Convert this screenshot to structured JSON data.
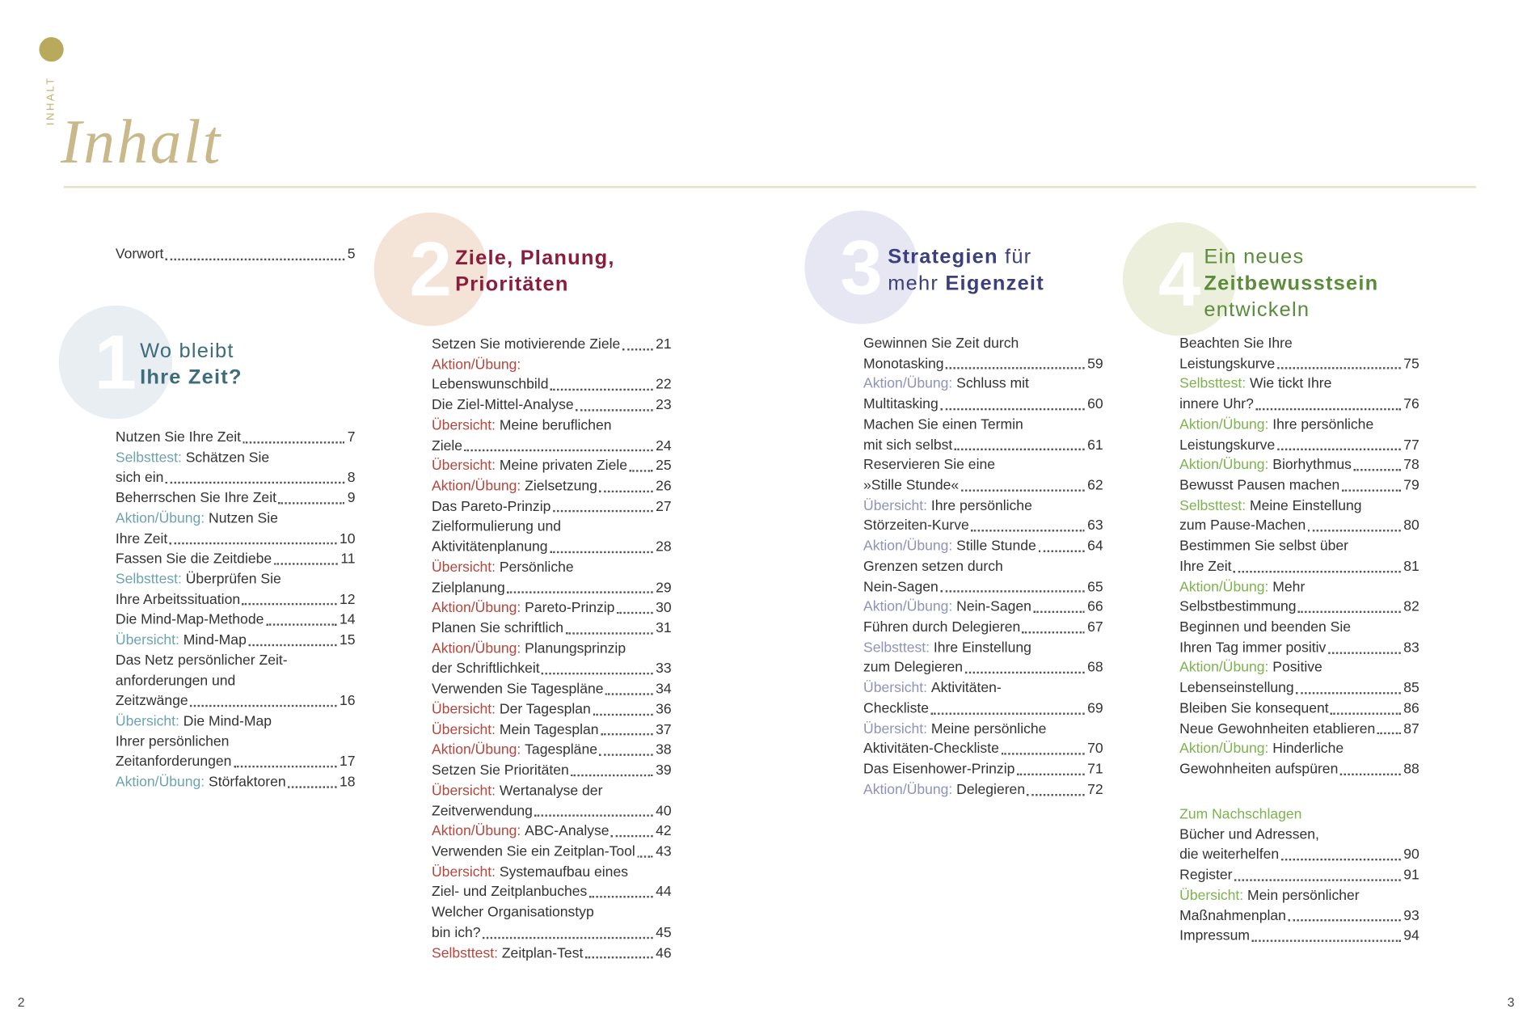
{
  "header": {
    "side_label": "INHALT",
    "title": "Inhalt"
  },
  "page_numbers": {
    "left": 2,
    "right": 3
  },
  "columns": [
    {
      "preface": [
        {
          "text": "Vorwort",
          "page": 5
        }
      ],
      "section": {
        "number": 1,
        "title": [
          [
            {
              "text": "Wo bleibt"
            }
          ],
          [
            {
              "text": "Ihre Zeit?",
              "bold": true
            }
          ]
        ]
      },
      "rows": [
        {
          "text": "Nutzen Sie Ihre Zeit",
          "page": 7
        },
        {
          "kind": "Selbsttest:",
          "text": "Schätzen Sie"
        },
        {
          "text": "sich ein",
          "page": 8
        },
        {
          "text": "Beherrschen Sie Ihre Zeit",
          "page": 9
        },
        {
          "kind": "Aktion/Übung:",
          "text": "Nutzen Sie"
        },
        {
          "text": "Ihre Zeit",
          "page": 10
        },
        {
          "text": "Fassen Sie die Zeitdiebe",
          "page": 11
        },
        {
          "kind": "Selbsttest:",
          "text": "Überprüfen Sie"
        },
        {
          "text": "Ihre Arbeitssituation",
          "page": 12
        },
        {
          "text": "Die Mind-Map-Methode",
          "page": 14
        },
        {
          "kind": "Übersicht:",
          "text": "Mind-Map",
          "page": 15
        },
        {
          "text": "Das Netz persönlicher Zeit-"
        },
        {
          "text": "anforderungen und"
        },
        {
          "text": "Zeitzwänge",
          "page": 16
        },
        {
          "kind": "Übersicht:",
          "text": "Die Mind-Map"
        },
        {
          "text": "Ihrer persönlichen"
        },
        {
          "text": "Zeitanforderungen",
          "page": 17
        },
        {
          "kind": "Aktion/Übung:",
          "text": "Störfaktoren",
          "page": 18
        }
      ]
    },
    {
      "section": {
        "number": 2,
        "title": [
          [
            {
              "text": "Ziele, Planung,",
              "bold": true
            }
          ],
          [
            {
              "text": "Prioritäten",
              "bold": true
            }
          ]
        ]
      },
      "rows": [
        {
          "text": "Setzen Sie motivierende Ziele",
          "page": 21
        },
        {
          "kind": "Aktion/Übung:"
        },
        {
          "text": "Lebenswunschbild",
          "page": 22
        },
        {
          "text": "Die Ziel-Mittel-Analyse",
          "page": 23
        },
        {
          "kind": "Übersicht:",
          "text": "Meine beruflichen"
        },
        {
          "text": "Ziele",
          "page": 24
        },
        {
          "kind": "Übersicht:",
          "text": "Meine privaten Ziele",
          "page": 25
        },
        {
          "kind": "Aktion/Übung:",
          "text": "Zielsetzung",
          "page": 26
        },
        {
          "text": "Das Pareto-Prinzip",
          "page": 27
        },
        {
          "text": "Zielformulierung und"
        },
        {
          "text": "Aktivitätenplanung",
          "page": 28
        },
        {
          "kind": "Übersicht:",
          "text": "Persönliche"
        },
        {
          "text": "Zielplanung",
          "page": 29
        },
        {
          "kind": "Aktion/Übung:",
          "text": "Pareto-Prinzip",
          "page": 30
        },
        {
          "text": "Planen Sie schriftlich",
          "page": 31
        },
        {
          "kind": "Aktion/Übung:",
          "text": "Planungsprinzip"
        },
        {
          "text": "der Schriftlichkeit",
          "page": 33
        },
        {
          "text": "Verwenden Sie Tagespläne",
          "page": 34
        },
        {
          "kind": "Übersicht:",
          "text": "Der Tagesplan",
          "page": 36
        },
        {
          "kind": "Übersicht:",
          "text": "Mein Tagesplan",
          "page": 37
        },
        {
          "kind": "Aktion/Übung:",
          "text": "Tagespläne",
          "page": 38
        },
        {
          "text": "Setzen Sie Prioritäten",
          "page": 39
        },
        {
          "kind": "Übersicht:",
          "text": "Wertanalyse der"
        },
        {
          "text": "Zeitverwendung",
          "page": 40
        },
        {
          "kind": "Aktion/Übung:",
          "text": "ABC-Analyse",
          "page": 42
        },
        {
          "text": "Verwenden Sie ein Zeitplan-Tool",
          "page": 43
        },
        {
          "kind": "Übersicht:",
          "text": "Systemaufbau eines"
        },
        {
          "text": "Ziel- und Zeitplanbuches",
          "page": 44
        },
        {
          "text": "Welcher Organisationstyp"
        },
        {
          "text": "bin ich?",
          "page": 45
        },
        {
          "kind": "Selbsttest:",
          "text": "Zeitplan-Test",
          "page": 46
        }
      ]
    },
    {
      "section": {
        "number": 3,
        "title": [
          [
            {
              "text": "Strategien",
              "bold": true
            },
            {
              "text": "für"
            }
          ],
          [
            {
              "text": "mehr"
            },
            {
              "text": "Eigenzeit",
              "bold": true
            }
          ]
        ]
      },
      "rows": [
        {
          "text": "Gewinnen Sie Zeit durch"
        },
        {
          "text": "Monotasking",
          "page": 59
        },
        {
          "kind": "Aktion/Übung:",
          "text": "Schluss mit"
        },
        {
          "text": "Multitasking",
          "page": 60
        },
        {
          "text": "Machen Sie einen Termin"
        },
        {
          "text": "mit sich selbst",
          "page": 61
        },
        {
          "text": "Reservieren Sie eine"
        },
        {
          "text": "»Stille Stunde«",
          "page": 62
        },
        {
          "kind": "Übersicht:",
          "text": "Ihre persönliche"
        },
        {
          "text": "Störzeiten-Kurve",
          "page": 63
        },
        {
          "kind": "Aktion/Übung:",
          "text": "Stille Stunde",
          "page": 64
        },
        {
          "text": "Grenzen setzen durch"
        },
        {
          "text": "Nein-Sagen",
          "page": 65
        },
        {
          "kind": "Aktion/Übung:",
          "text": "Nein-Sagen",
          "page": 66
        },
        {
          "text": "Führen durch Delegieren",
          "page": 67
        },
        {
          "kind": "Selbsttest:",
          "text": "Ihre Einstellung"
        },
        {
          "text": "zum Delegieren",
          "page": 68
        },
        {
          "kind": "Übersicht:",
          "text": "Aktivitäten-"
        },
        {
          "text": "Checkliste",
          "page": 69
        },
        {
          "kind": "Übersicht:",
          "text": "Meine persönliche"
        },
        {
          "text": "Aktivitäten-Checkliste",
          "page": 70
        },
        {
          "text": "Das Eisenhower-Prinzip",
          "page": 71
        },
        {
          "kind": "Aktion/Übung:",
          "text": "Delegieren",
          "page": 72
        }
      ]
    },
    {
      "section": {
        "number": 4,
        "title": [
          [
            {
              "text": "Ein neues"
            }
          ],
          [
            {
              "text": "Zeitbewusstsein",
              "bold": true
            }
          ],
          [
            {
              "text": "entwickeln"
            }
          ]
        ]
      },
      "rows": [
        {
          "text": "Beachten Sie Ihre"
        },
        {
          "text": "Leistungskurve",
          "page": 75
        },
        {
          "kind": "Selbsttest:",
          "text": "Wie tickt Ihre"
        },
        {
          "text": "innere Uhr?",
          "page": 76
        },
        {
          "kind": "Aktion/Übung:",
          "text": "Ihre persönliche"
        },
        {
          "text": "Leistungskurve",
          "page": 77
        },
        {
          "kind": "Aktion/Übung:",
          "text": "Biorhythmus",
          "page": 78
        },
        {
          "text": "Bewusst Pausen machen",
          "page": 79
        },
        {
          "kind": "Selbsttest:",
          "text": "Meine Einstellung"
        },
        {
          "text": "zum Pause-Machen",
          "page": 80
        },
        {
          "text": "Bestimmen Sie selbst über"
        },
        {
          "text": "Ihre Zeit",
          "page": 81
        },
        {
          "kind": "Aktion/Übung:",
          "text": "Mehr"
        },
        {
          "text": "Selbstbestimmung",
          "page": 82
        },
        {
          "text": "Beginnen und beenden Sie"
        },
        {
          "text": "Ihren Tag immer positiv",
          "page": 83
        },
        {
          "kind": "Aktion/Übung:",
          "text": "Positive"
        },
        {
          "text": "Lebenseinstellung",
          "page": 85
        },
        {
          "text": "Bleiben Sie konsequent",
          "page": 86
        },
        {
          "text": "Neue Gewohnheiten etablieren",
          "page": 87
        },
        {
          "kind": "Aktion/Übung:",
          "text": "Hinderliche"
        },
        {
          "text": "Gewohnheiten aufspüren",
          "page": 88
        }
      ],
      "appendix": {
        "heading": "Zum Nachschlagen",
        "rows": [
          {
            "text": "Bücher und Adressen,"
          },
          {
            "text": "die weiterhelfen",
            "page": 90
          },
          {
            "text": "Register",
            "page": 91
          },
          {
            "kind": "Übersicht:",
            "text": "Mein persönlicher"
          },
          {
            "text": "Maßnahmenplan",
            "page": 93
          },
          {
            "text": "Impressum",
            "page": 94
          }
        ]
      }
    }
  ]
}
